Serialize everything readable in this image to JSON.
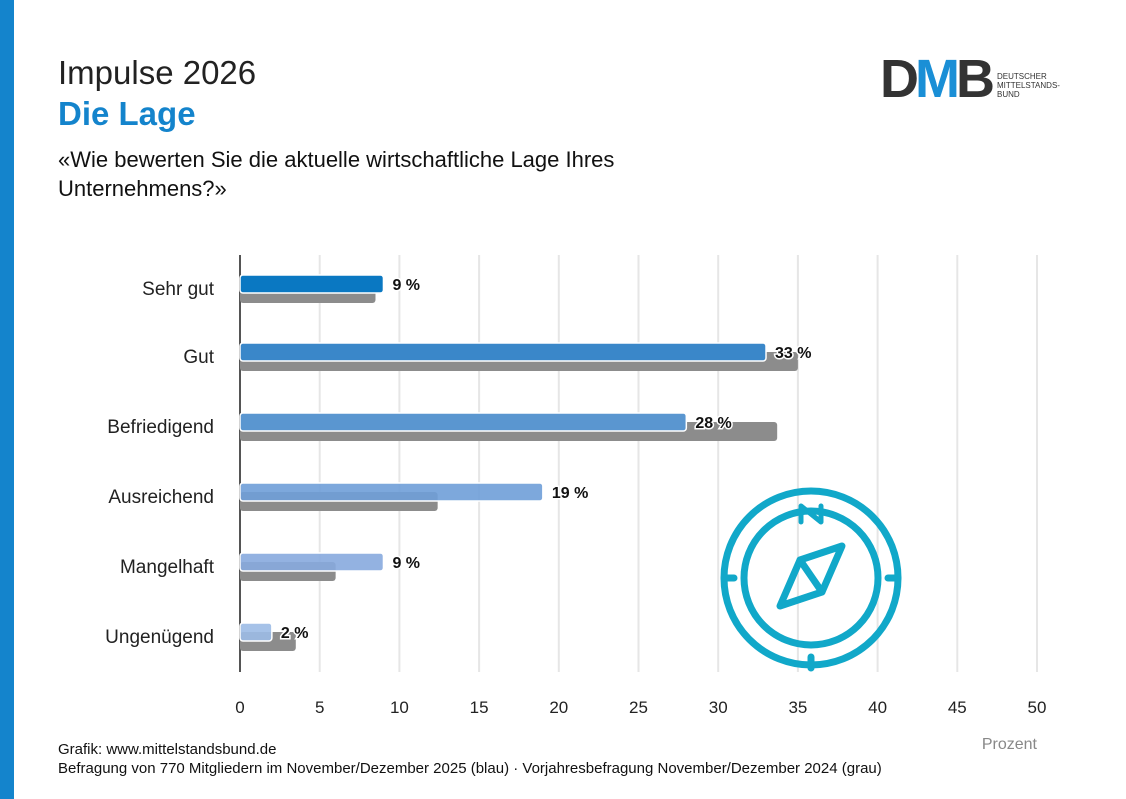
{
  "header": {
    "title": "Impulse 2026",
    "subtitle": "Die Lage",
    "question": "«Wie bewerten Sie die aktuelle wirtschaftliche Lage Ihres Unternehmens?»"
  },
  "logo": {
    "letters": "DMB",
    "text_lines": [
      "DEUTSCHER",
      "MITTELSTANDS-",
      "BUND"
    ]
  },
  "footer": {
    "line1": "Grafik: www.mittelstandsbund.de",
    "line2": "Befragung von 770 Mitgliedern im November/Dezember 2025 (blau) · Vorjahresbefragung November/Dezember 2024 (grau)"
  },
  "colors": {
    "accent": "#1484cc",
    "gray": "#8c8c8c",
    "compass": "#11a8c9"
  },
  "icon": "compass-icon",
  "chart_data": {
    "type": "bar",
    "orientation": "horizontal",
    "categories": [
      "Sehr gut",
      "Gut",
      "Befriedigend",
      "Ausreichend",
      "Mangelhaft",
      "Ungenügend"
    ],
    "series": [
      {
        "values": [
          9,
          33,
          28,
          19,
          9,
          2
        ],
        "labels": [
          "9 %",
          "33 %",
          "28 %",
          "19 %",
          "9 %",
          "2 %"
        ],
        "colors": [
          "#0a78c2",
          "#3a87c9",
          "#5a96d0",
          "#6f9fd8",
          "#87aade",
          "#9cbbe6"
        ]
      },
      {
        "values": [
          8.5,
          35,
          33.7,
          12.4,
          6,
          3.5
        ],
        "color": "#8c8c8c"
      }
    ],
    "xlabel": "Prozent",
    "xlim": [
      0,
      50
    ],
    "xticks": [
      0,
      5,
      10,
      15,
      20,
      25,
      30,
      35,
      40,
      45,
      50
    ],
    "grid": true
  }
}
